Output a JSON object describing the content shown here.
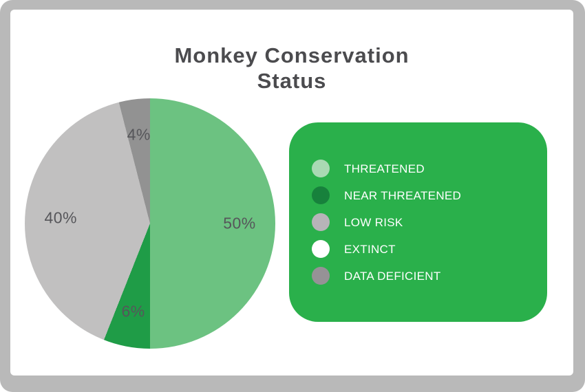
{
  "title": {
    "lines": [
      "Monkey Conservation",
      "Status"
    ]
  },
  "chart_data": {
    "type": "pie",
    "title": "Monkey Conservation Status",
    "categories": [
      "THREATENED",
      "NEAR THREATENED",
      "LOW RISK",
      "EXTINCT",
      "DATA DEFICIENT"
    ],
    "values": [
      50,
      6,
      40,
      0,
      4
    ],
    "unit": "%",
    "start_angle_deg": 0,
    "direction": "clockwise",
    "legend_position": "right",
    "data_labels_shown": true,
    "slices": [
      {
        "label": "THREATENED",
        "value": 50,
        "color": "#6cc281",
        "data_label": "50%"
      },
      {
        "label": "NEAR THREATENED",
        "value": 6,
        "color": "#1f9c47",
        "data_label": "6%"
      },
      {
        "label": "LOW RISK",
        "value": 40,
        "color": "#c1c0c0",
        "data_label": "40%"
      },
      {
        "label": "DATA DEFICIENT",
        "value": 4,
        "color": "#929292",
        "data_label": "4%"
      }
    ]
  },
  "legend": {
    "background_color": "#2ab04b",
    "text_color": "#ffffff",
    "items": [
      {
        "label": "THREATENED",
        "color": "#a9d9b3"
      },
      {
        "label": "NEAR THREATENED",
        "color": "#17813c"
      },
      {
        "label": "LOW RISK",
        "color": "#b7b4b8"
      },
      {
        "label": "EXTINCT",
        "color": "#ffffff"
      },
      {
        "label": "DATA DEFICIENT",
        "color": "#969296"
      }
    ]
  },
  "colors": {
    "frame": "#b9b9b9",
    "card_background": "#ffffff",
    "title_text": "#4b4b4e",
    "slice_label_text": "#56565a"
  }
}
